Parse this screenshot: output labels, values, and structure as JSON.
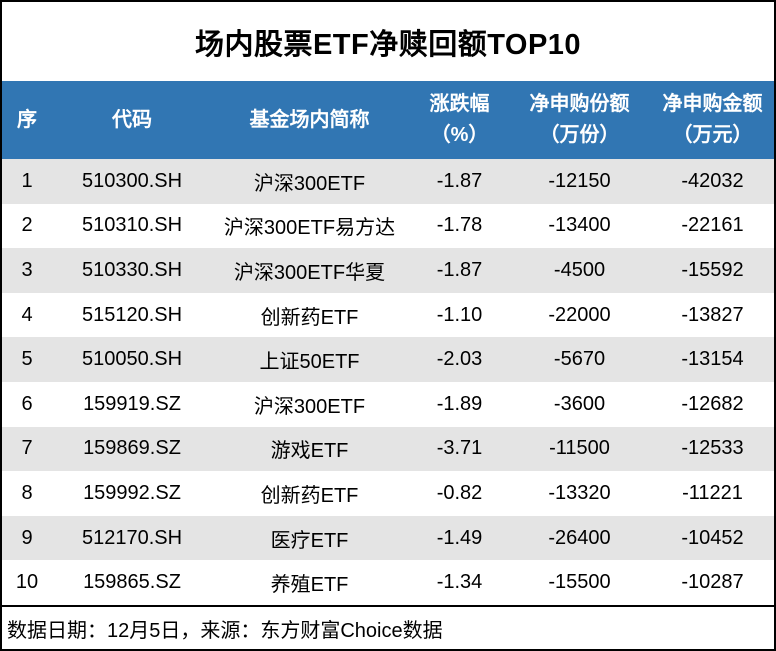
{
  "chart_data": {
    "type": "table",
    "title": "场内股票ETF净赎回额TOP10",
    "columns": [
      {
        "label": "序",
        "unit": ""
      },
      {
        "label": "代码",
        "unit": ""
      },
      {
        "label": "基金场内简称",
        "unit": ""
      },
      {
        "label": "涨跌幅",
        "unit": "（%）"
      },
      {
        "label": "净申购份额",
        "unit": "（万份）"
      },
      {
        "label": "净申购金额",
        "unit": "（万元）"
      }
    ],
    "rows": [
      [
        "1",
        "510300.SH",
        "沪深300ETF",
        "-1.87",
        "-12150",
        "-42032"
      ],
      [
        "2",
        "510310.SH",
        "沪深300ETF易方达",
        "-1.78",
        "-13400",
        "-22161"
      ],
      [
        "3",
        "510330.SH",
        "沪深300ETF华夏",
        "-1.87",
        "-4500",
        "-15592"
      ],
      [
        "4",
        "515120.SH",
        "创新药ETF",
        "-1.10",
        "-22000",
        "-13827"
      ],
      [
        "5",
        "510050.SH",
        "上证50ETF",
        "-2.03",
        "-5670",
        "-13154"
      ],
      [
        "6",
        "159919.SZ",
        "沪深300ETF",
        "-1.89",
        "-3600",
        "-12682"
      ],
      [
        "7",
        "159869.SZ",
        "游戏ETF",
        "-3.71",
        "-11500",
        "-12533"
      ],
      [
        "8",
        "159992.SZ",
        "创新药ETF",
        "-0.82",
        "-13320",
        "-11221"
      ],
      [
        "9",
        "512170.SH",
        "医疗ETF",
        "-1.49",
        "-26400",
        "-10452"
      ],
      [
        "10",
        "159865.SZ",
        "养殖ETF",
        "-1.34",
        "-15500",
        "-10287"
      ]
    ],
    "footer": "数据日期：12月5日，来源：东方财富Choice数据",
    "layout": {
      "header_bg": "#3176b3",
      "header_text_color": "#ffffff",
      "alt_row_bg": "#e4e4e4",
      "border_color": "#000000",
      "grid": "alternating-row-shading"
    }
  }
}
